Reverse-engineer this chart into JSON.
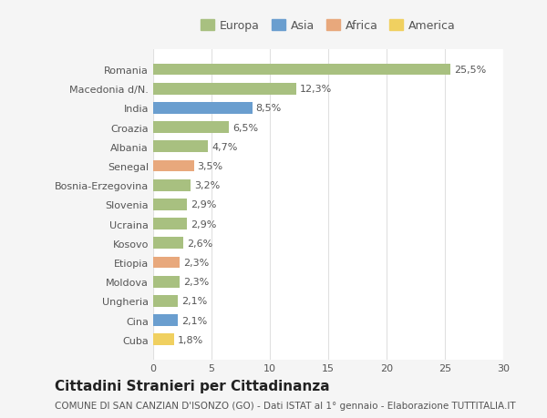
{
  "countries": [
    "Cuba",
    "Cina",
    "Ungheria",
    "Moldova",
    "Etiopia",
    "Kosovo",
    "Ucraina",
    "Slovenia",
    "Bosnia-Erzegovina",
    "Senegal",
    "Albania",
    "Croazia",
    "India",
    "Macedonia d/N.",
    "Romania"
  ],
  "values": [
    1.8,
    2.1,
    2.1,
    2.3,
    2.3,
    2.6,
    2.9,
    2.9,
    3.2,
    3.5,
    4.7,
    6.5,
    8.5,
    12.3,
    25.5
  ],
  "labels": [
    "1,8%",
    "2,1%",
    "2,1%",
    "2,3%",
    "2,3%",
    "2,6%",
    "2,9%",
    "2,9%",
    "3,2%",
    "3,5%",
    "4,7%",
    "6,5%",
    "8,5%",
    "12,3%",
    "25,5%"
  ],
  "continents": [
    "America",
    "Asia",
    "Europa",
    "Europa",
    "Africa",
    "Europa",
    "Europa",
    "Europa",
    "Europa",
    "Africa",
    "Europa",
    "Europa",
    "Asia",
    "Europa",
    "Europa"
  ],
  "continent_colors": {
    "Europa": "#a8c080",
    "Asia": "#6a9ecf",
    "Africa": "#e8a87c",
    "America": "#f0d060"
  },
  "legend_items": [
    "Europa",
    "Asia",
    "Africa",
    "America"
  ],
  "title": "Cittadini Stranieri per Cittadinanza",
  "subtitle": "COMUNE DI SAN CANZIAN D'ISONZO (GO) - Dati ISTAT al 1° gennaio - Elaborazione TUTTITALIA.IT",
  "xlim": [
    0,
    30
  ],
  "xticks": [
    0,
    5,
    10,
    15,
    20,
    25,
    30
  ],
  "background_color": "#f5f5f5",
  "plot_background": "#ffffff",
  "grid_color": "#e0e0e0",
  "bar_height": 0.6,
  "title_fontsize": 11,
  "subtitle_fontsize": 7.5,
  "label_fontsize": 8,
  "tick_fontsize": 8,
  "legend_fontsize": 9
}
